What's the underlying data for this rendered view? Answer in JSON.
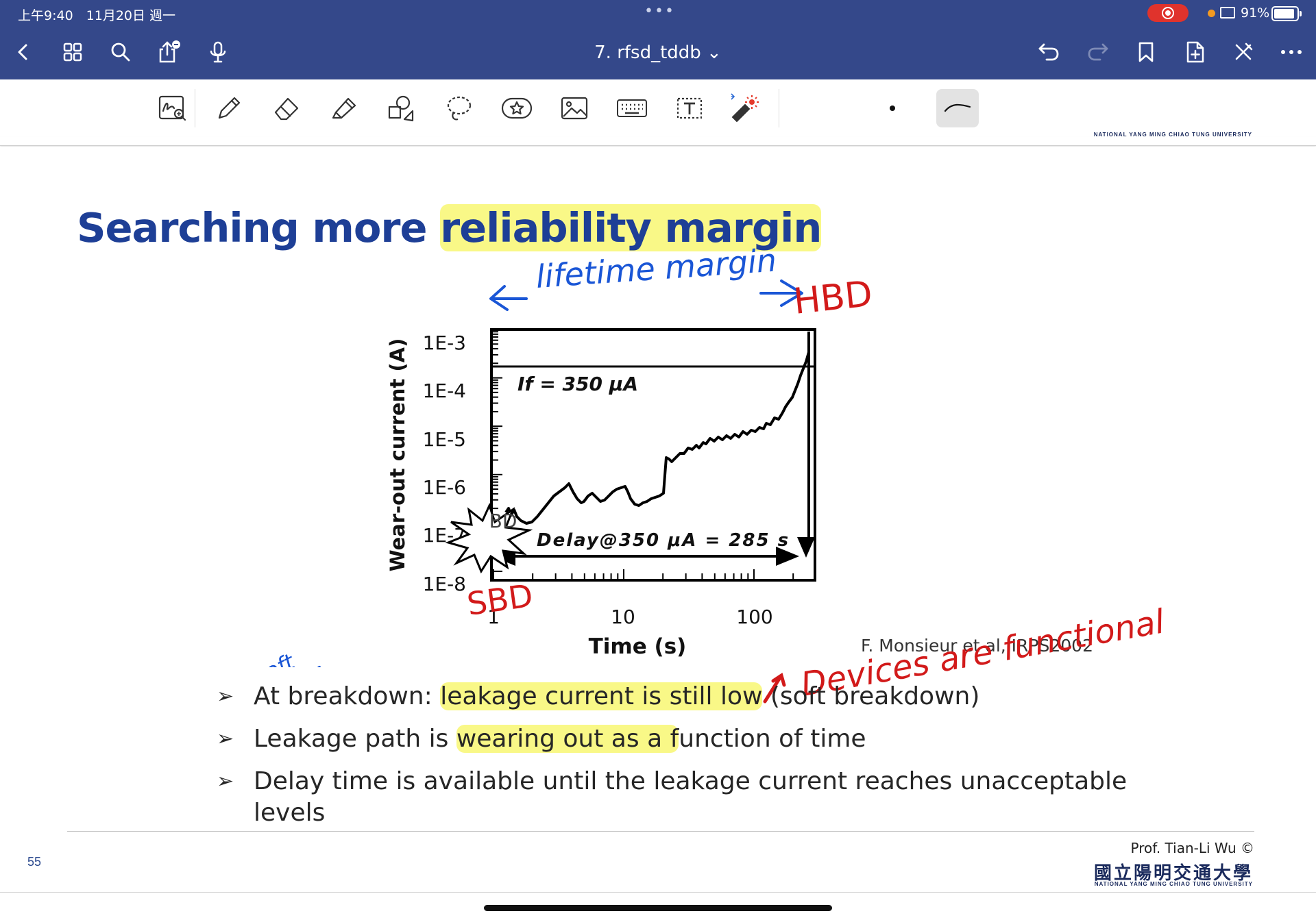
{
  "status_bar": {
    "time": "上午9:40　11月20日 週一",
    "dots": "•••",
    "battery": "91%"
  },
  "nav": {
    "title": "7. rfsd_tddb ⌄"
  },
  "toolbar": {
    "tools": [
      "lasso-zoom",
      "pen",
      "eraser",
      "highlighter",
      "shapes",
      "lasso",
      "sticker",
      "image",
      "keyboard",
      "text",
      "laser-pointer"
    ]
  },
  "header_strip": {
    "university_en": "NATIONAL YANG MING CHIAO TUNG UNIVERSITY"
  },
  "slide": {
    "title_plain": "Searching more ",
    "title_highlight": "reliability margin",
    "chart": {
      "ylabel": "Wear-out current (A)",
      "xlabel": "Time (s)",
      "yticks": [
        "1E-3",
        "1E-4",
        "1E-5",
        "1E-6",
        "1E-7",
        "1E-8"
      ],
      "xticks": [
        "1",
        "10",
        "100"
      ],
      "if_label": "If = 350 μA",
      "delay_label": "Delay@350 μA  = 285 s",
      "bd_label": "BD"
    },
    "citation": "F. Monsieur et al, IRPS2002",
    "bullets": [
      {
        "pre": "At breakdown: ",
        "hl": "leakage current is still low",
        "post": " (soft breakdown)"
      },
      {
        "pre": "Leakage path is ",
        "hl": "wearing out as a f",
        "post": "unction of time"
      },
      {
        "pre": "Delay time is available until the leakage current reaches unacceptable levels",
        "hl": "",
        "post": ""
      }
    ],
    "annotations": {
      "lifetime": "lifetime margin",
      "hbd": "HBD",
      "sbd": "SBD",
      "soft": "soft",
      "devices": "Devices are functional"
    },
    "page_number": "55",
    "professor": "Prof. Tian-Li Wu ©",
    "university": "國立陽明交通大學",
    "university_en": "NATIONAL YANG MING CHIAO TUNG UNIVERSITY"
  }
}
